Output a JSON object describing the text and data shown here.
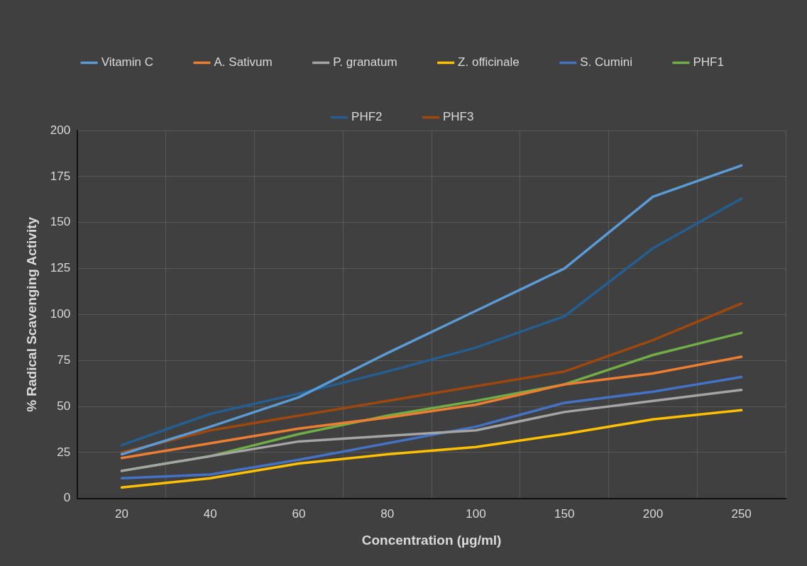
{
  "chart_data": {
    "type": "line",
    "xlabel": "Concentration (µg/ml)",
    "ylabel": "% Radical Scavenging Activity",
    "categories": [
      "20",
      "40",
      "60",
      "80",
      "100",
      "150",
      "200",
      "250"
    ],
    "series": [
      {
        "name": "Vitamin C",
        "color": "#5b9bd5",
        "values": [
          24,
          39,
          55,
          79,
          102,
          125,
          164,
          181
        ]
      },
      {
        "name": "A. Sativum",
        "color": "#ed7d31",
        "values": [
          22,
          30,
          38,
          44,
          51,
          62,
          68,
          77
        ]
      },
      {
        "name": "P. granatum",
        "color": "#a5a5a5",
        "values": [
          15,
          23,
          31,
          34,
          37,
          47,
          53,
          59
        ]
      },
      {
        "name": "Z. officinale",
        "color": "#ffc000",
        "values": [
          6,
          11,
          19,
          24,
          28,
          35,
          43,
          48
        ]
      },
      {
        "name": "S. Cumini",
        "color": "#4472c4",
        "values": [
          11,
          13,
          21,
          30,
          39,
          52,
          58,
          66
        ]
      },
      {
        "name": "PHF1",
        "color": "#70ad47",
        "values": [
          15,
          23,
          35,
          45,
          53,
          62,
          78,
          90
        ]
      },
      {
        "name": "PHF2",
        "color": "#255e91",
        "values": [
          29,
          46,
          57,
          69,
          82,
          99,
          136,
          163
        ]
      },
      {
        "name": "PHF3",
        "color": "#9e480e",
        "values": [
          25,
          37,
          45,
          53,
          61,
          69,
          86,
          106
        ]
      }
    ],
    "ylim": [
      0,
      200
    ],
    "yticks": [
      0,
      25,
      50,
      75,
      100,
      125,
      150,
      175,
      200
    ],
    "grid": true,
    "legend": "top",
    "marker": "none",
    "line_style": "solid"
  }
}
